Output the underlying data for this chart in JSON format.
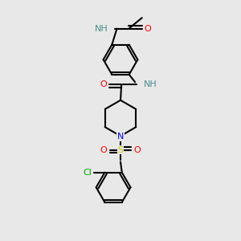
{
  "background_color": "#e8e8e8",
  "atom_colors": {
    "C": "#000000",
    "H": "#4a9090",
    "N": "#0000ff",
    "O": "#ff0000",
    "S": "#cccc00",
    "Cl": "#00aa00"
  },
  "figsize": [
    3.0,
    3.0
  ],
  "dpi": 100,
  "xlim": [
    0,
    10
  ],
  "ylim": [
    0,
    10
  ]
}
